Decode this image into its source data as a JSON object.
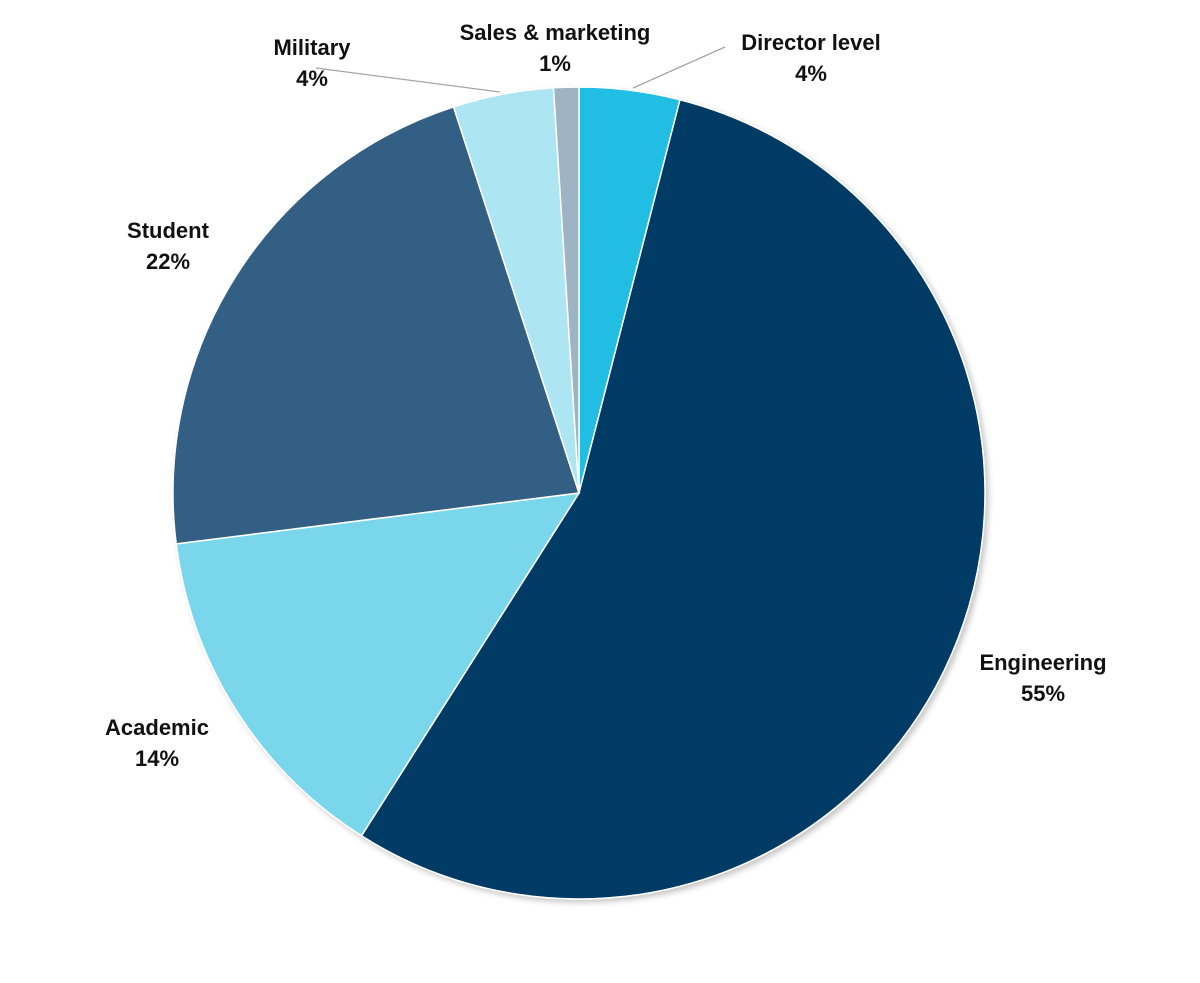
{
  "chart_data": {
    "type": "pie",
    "start": "12 o'clock",
    "direction": "clockwise",
    "label_position": "outside",
    "slices": [
      {
        "label": "Director level",
        "value": 4,
        "value_label": "4%",
        "color": "#24bde3"
      },
      {
        "label": "Engineering",
        "value": 55,
        "value_label": "55%",
        "color": "#003a66"
      },
      {
        "label": "Academic",
        "value": 14,
        "value_label": "14%",
        "color": "#7ad6ea"
      },
      {
        "label": "Student",
        "value": 22,
        "value_label": "22%",
        "color": "#335f83"
      },
      {
        "label": "Military",
        "value": 4,
        "value_label": "4%",
        "color": "#aee5f3"
      },
      {
        "label": "Sales & marketing",
        "value": 1,
        "value_label": "1%",
        "color": "#9eb3c4"
      }
    ]
  }
}
